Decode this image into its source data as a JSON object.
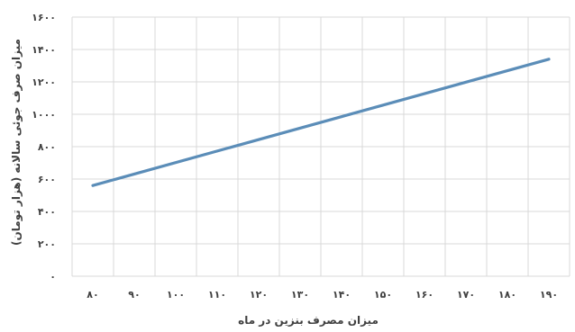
{
  "chart_data": {
    "type": "line",
    "xlabel": "میزان مصرف بنزین در ماه",
    "ylabel": "میزان صرف جوئی سالانه (هزار تومان)",
    "x_ticks": [
      "۸۰",
      "۹۰",
      "۱۰۰",
      "۱۱۰",
      "۱۲۰",
      "۱۳۰",
      "۱۴۰",
      "۱۵۰",
      "۱۶۰",
      "۱۷۰",
      "۱۸۰",
      "۱۹۰"
    ],
    "y_ticks": [
      "۰",
      "۲۰۰",
      "۴۰۰",
      "۶۰۰",
      "۸۰۰",
      "۱۰۰۰",
      "۱۲۰۰",
      "۱۴۰۰",
      "۱۶۰۰"
    ],
    "xlim": [
      80,
      190
    ],
    "ylim": [
      0,
      1600
    ],
    "grid": true,
    "series": [
      {
        "color": "#5b8db8",
        "x": [
          80,
          190
        ],
        "y": [
          560,
          1340
        ]
      }
    ]
  }
}
